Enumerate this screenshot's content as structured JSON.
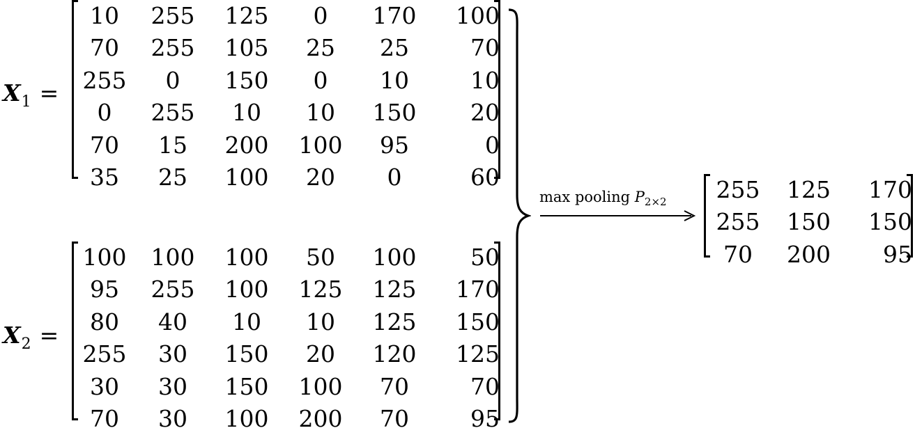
{
  "x1": {
    "symbol": "X",
    "subscript": "1",
    "equals": "=",
    "rows": [
      [
        "10",
        "255",
        "125",
        "0",
        "170",
        "100"
      ],
      [
        "70",
        "255",
        "105",
        "25",
        "25",
        "70"
      ],
      [
        "255",
        "0",
        "150",
        "0",
        "10",
        "10"
      ],
      [
        "0",
        "255",
        "10",
        "10",
        "150",
        "20"
      ],
      [
        "70",
        "15",
        "200",
        "100",
        "95",
        "0"
      ],
      [
        "35",
        "25",
        "100",
        "20",
        "0",
        "60"
      ]
    ]
  },
  "x2": {
    "symbol": "X",
    "subscript": "2",
    "equals": "=",
    "rows": [
      [
        "100",
        "100",
        "100",
        "50",
        "100",
        "50"
      ],
      [
        "95",
        "255",
        "100",
        "125",
        "125",
        "170"
      ],
      [
        "80",
        "40",
        "10",
        "10",
        "125",
        "150"
      ],
      [
        "255",
        "30",
        "150",
        "20",
        "120",
        "125"
      ],
      [
        "30",
        "30",
        "150",
        "100",
        "70",
        "70"
      ],
      [
        "70",
        "30",
        "100",
        "200",
        "70",
        "95"
      ]
    ]
  },
  "operation": {
    "text": "max pooling ",
    "symbol": "P",
    "subscript": "2×2"
  },
  "result": {
    "rows": [
      [
        "255",
        "125",
        "170"
      ],
      [
        "255",
        "150",
        "150"
      ],
      [
        "70",
        "200",
        "95"
      ]
    ]
  }
}
